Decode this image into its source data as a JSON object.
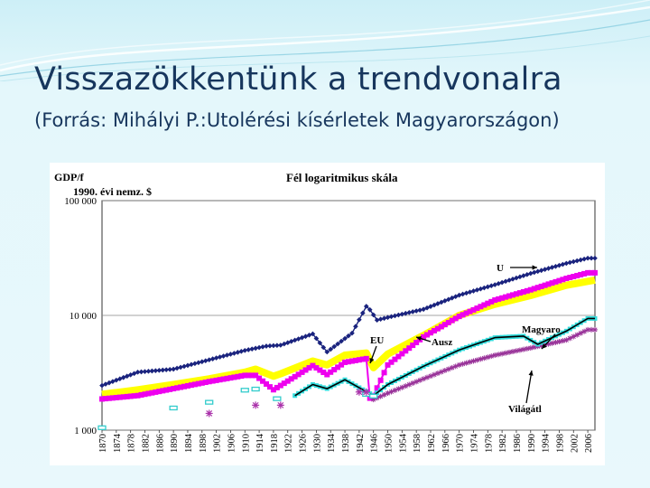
{
  "slide": {
    "title": "Visszazökkentünk a trendvonalra",
    "subtitle": "(Forrás: Mihályi P.:Utolérési kísérletek Magyarországon)"
  },
  "chart_data": {
    "type": "line",
    "title": "Fél logaritmikus skála",
    "ylabel_line1": "GDP/f",
    "ylabel_line2": "1990. évi nemz. $",
    "yscale": "log",
    "ylim": [
      1000,
      100000
    ],
    "yticks": [
      "100 000",
      "10 000",
      "1 000"
    ],
    "xlim": [
      1870,
      2008
    ],
    "xticks": [
      "1870",
      "1874",
      "1878",
      "1882",
      "1886",
      "1890",
      "1894",
      "1898",
      "1902",
      "1906",
      "1910",
      "1914",
      "1918",
      "1922",
      "1926",
      "1930",
      "1934",
      "1938",
      "1942",
      "1946",
      "1950",
      "1954",
      "1958",
      "1962",
      "1966",
      "1970",
      "1974",
      "1978",
      "1982",
      "1986",
      "1990",
      "1994",
      "1998",
      "2002",
      "2006"
    ],
    "grid": "horizontal",
    "annotations": [
      "U",
      "EU",
      "Ausz",
      "Magyarο",
      "Világátl"
    ],
    "colors": {
      "U": "#1a237e",
      "EU": "#ffff00",
      "Ausz": "#ee00ee",
      "Magyar": "#000000",
      "Magyar_marker": "#33dddd",
      "Vilag": "#993399"
    },
    "series": [
      {
        "name": "U",
        "x": [
          1870,
          1880,
          1890,
          1900,
          1910,
          1916,
          1920,
          1929,
          1933,
          1940,
          1944,
          1945,
          1947,
          1950,
          1960,
          1970,
          1980,
          1990,
          2000,
          2006,
          2008
        ],
        "values": [
          2450,
          3200,
          3400,
          4100,
          4950,
          5400,
          5500,
          6900,
          4800,
          7000,
          12000,
          11200,
          9100,
          9600,
          11300,
          15000,
          18500,
          23200,
          28400,
          31500,
          31500
        ]
      },
      {
        "name": "EU",
        "x": [
          1870,
          1880,
          1890,
          1900,
          1910,
          1913,
          1918,
          1920,
          1929,
          1933,
          1938,
          1944,
          1946,
          1950,
          1960,
          1970,
          1980,
          1990,
          2000,
          2006,
          2008
        ],
        "values": [
          2050,
          2250,
          2500,
          2800,
          3200,
          3400,
          2950,
          3100,
          4000,
          3700,
          4500,
          4700,
          3500,
          4600,
          6700,
          10000,
          12500,
          14900,
          18300,
          19800,
          20300
        ]
      },
      {
        "name": "Ausz",
        "x": [
          1870,
          1880,
          1890,
          1900,
          1910,
          1913,
          1918,
          1920,
          1929,
          1933,
          1938,
          1944,
          1945,
          1946,
          1950,
          1960,
          1970,
          1980,
          1990,
          2000,
          2006,
          2008
        ],
        "values": [
          1870,
          2000,
          2300,
          2650,
          3000,
          3000,
          2250,
          2450,
          3650,
          3050,
          3900,
          4200,
          1900,
          2000,
          3700,
          6500,
          9800,
          13600,
          16700,
          21000,
          23500,
          23500
        ]
      },
      {
        "name": "Magyar",
        "x": [
          1924,
          1929,
          1933,
          1938,
          1946,
          1950,
          1960,
          1970,
          1980,
          1988,
          1992,
          2000,
          2006,
          2008
        ],
        "values": [
          2000,
          2500,
          2300,
          2750,
          2000,
          2500,
          3600,
          5000,
          6400,
          6600,
          5600,
          7300,
          9400,
          9400
        ]
      },
      {
        "name": "Világátl",
        "x": [
          1946,
          1950,
          1960,
          1970,
          1980,
          1990,
          2000,
          2006,
          2008
        ],
        "values": [
          1850,
          2100,
          2800,
          3700,
          4500,
          5200,
          6100,
          7500,
          7500
        ]
      }
    ],
    "sparse_points": {
      "cyan": {
        "x": [
          1870,
          1890,
          1900,
          1910,
          1913,
          1919,
          1944,
          1946
        ],
        "values": [
          1050,
          1560,
          1750,
          2230,
          2280,
          1880,
          2050,
          1980
        ]
      },
      "purple": {
        "x": [
          1900,
          1913,
          1920,
          1942,
          1944
        ],
        "values": [
          1400,
          1650,
          1650,
          2150,
          2150
        ]
      }
    }
  }
}
